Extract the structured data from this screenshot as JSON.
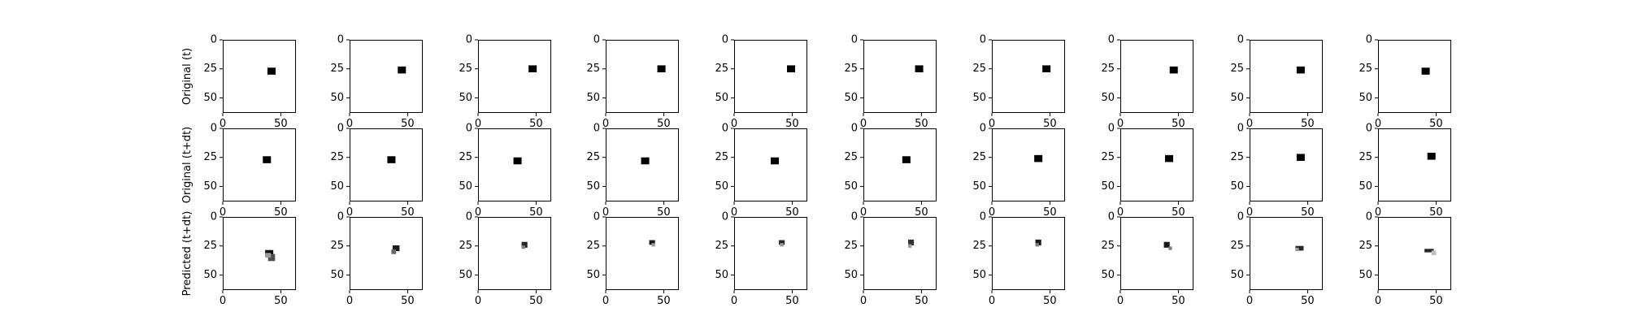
{
  "chart_data": {
    "type": "heatmap",
    "description_rows": [
      "original_t",
      "original_t_plus_dt",
      "predicted_t_plus_dt"
    ],
    "colormap": "gray_r",
    "colors": {
      "foreground": "#000000",
      "background": "#ffffff",
      "axis": "#000000"
    },
    "image_size": [
      64,
      64
    ],
    "axes": {
      "xlim": [
        0,
        63
      ],
      "ylim": [
        63,
        0
      ],
      "xticks": [
        0,
        50
      ],
      "yticks": [
        0,
        25,
        50
      ],
      "xtick_labels": [
        "0",
        "50"
      ],
      "ytick_labels": [
        "0",
        "25",
        "50"
      ]
    },
    "rows": [
      {
        "ylabel": "Original (t)",
        "frames": [
          {
            "blobs": [
              {
                "x": 42,
                "y": 27,
                "w": 7,
                "h": 6,
                "intensity": 1.0
              }
            ]
          },
          {
            "blobs": [
              {
                "x": 45,
                "y": 26,
                "w": 7,
                "h": 6,
                "intensity": 1.0
              }
            ]
          },
          {
            "blobs": [
              {
                "x": 47,
                "y": 25,
                "w": 7,
                "h": 6,
                "intensity": 1.0
              }
            ]
          },
          {
            "blobs": [
              {
                "x": 48,
                "y": 25,
                "w": 7,
                "h": 6,
                "intensity": 1.0
              }
            ]
          },
          {
            "blobs": [
              {
                "x": 49,
                "y": 25,
                "w": 7,
                "h": 6,
                "intensity": 1.0
              }
            ]
          },
          {
            "blobs": [
              {
                "x": 48,
                "y": 25,
                "w": 7,
                "h": 6,
                "intensity": 1.0
              }
            ]
          },
          {
            "blobs": [
              {
                "x": 47,
                "y": 25,
                "w": 7,
                "h": 6,
                "intensity": 1.0
              }
            ]
          },
          {
            "blobs": [
              {
                "x": 46,
                "y": 26,
                "w": 7,
                "h": 6,
                "intensity": 1.0
              }
            ]
          },
          {
            "blobs": [
              {
                "x": 44,
                "y": 26,
                "w": 7,
                "h": 6,
                "intensity": 1.0
              }
            ]
          },
          {
            "blobs": [
              {
                "x": 41,
                "y": 27,
                "w": 7,
                "h": 6,
                "intensity": 1.0
              }
            ]
          }
        ]
      },
      {
        "ylabel": "Original (t+dt)",
        "frames": [
          {
            "blobs": [
              {
                "x": 38,
                "y": 27,
                "w": 7,
                "h": 6,
                "intensity": 1.0
              }
            ]
          },
          {
            "blobs": [
              {
                "x": 36,
                "y": 27,
                "w": 7,
                "h": 6,
                "intensity": 1.0
              }
            ]
          },
          {
            "blobs": [
              {
                "x": 34,
                "y": 28,
                "w": 7,
                "h": 6,
                "intensity": 1.0
              }
            ]
          },
          {
            "blobs": [
              {
                "x": 34,
                "y": 28,
                "w": 7,
                "h": 6,
                "intensity": 1.0
              }
            ]
          },
          {
            "blobs": [
              {
                "x": 35,
                "y": 28,
                "w": 7,
                "h": 6,
                "intensity": 1.0
              }
            ]
          },
          {
            "blobs": [
              {
                "x": 37,
                "y": 27,
                "w": 7,
                "h": 6,
                "intensity": 1.0
              }
            ]
          },
          {
            "blobs": [
              {
                "x": 40,
                "y": 26,
                "w": 7,
                "h": 6,
                "intensity": 1.0
              }
            ]
          },
          {
            "blobs": [
              {
                "x": 42,
                "y": 26,
                "w": 7,
                "h": 6,
                "intensity": 1.0
              }
            ]
          },
          {
            "blobs": [
              {
                "x": 44,
                "y": 25,
                "w": 7,
                "h": 6,
                "intensity": 1.0
              }
            ]
          },
          {
            "blobs": [
              {
                "x": 46,
                "y": 24,
                "w": 7,
                "h": 6,
                "intensity": 1.0
              }
            ]
          }
        ]
      },
      {
        "ylabel": "Predicted (t+dt)",
        "frames": [
          {
            "blobs": [
              {
                "x": 40,
                "y": 31,
                "w": 7,
                "h": 5,
                "intensity": 0.95
              },
              {
                "x": 42,
                "y": 35,
                "w": 6,
                "h": 6,
                "intensity": 0.7
              },
              {
                "x": 39,
                "y": 33,
                "w": 5,
                "h": 4,
                "intensity": 0.4
              }
            ]
          },
          {
            "blobs": [
              {
                "x": 40,
                "y": 27,
                "w": 6,
                "h": 5,
                "intensity": 0.9
              },
              {
                "x": 38,
                "y": 30,
                "w": 4,
                "h": 4,
                "intensity": 0.6
              }
            ]
          },
          {
            "blobs": [
              {
                "x": 40,
                "y": 24,
                "w": 5,
                "h": 5,
                "intensity": 0.85
              },
              {
                "x": 39,
                "y": 26,
                "w": 3,
                "h": 3,
                "intensity": 0.5
              }
            ]
          },
          {
            "blobs": [
              {
                "x": 40,
                "y": 22,
                "w": 5,
                "h": 4,
                "intensity": 0.9
              },
              {
                "x": 41,
                "y": 24,
                "w": 3,
                "h": 3,
                "intensity": 0.4
              }
            ]
          },
          {
            "blobs": [
              {
                "x": 41,
                "y": 22,
                "w": 5,
                "h": 4,
                "intensity": 0.85
              },
              {
                "x": 41,
                "y": 24,
                "w": 3,
                "h": 3,
                "intensity": 0.4
              }
            ]
          },
          {
            "blobs": [
              {
                "x": 41,
                "y": 22,
                "w": 5,
                "h": 5,
                "intensity": 0.8
              },
              {
                "x": 40,
                "y": 25,
                "w": 3,
                "h": 3,
                "intensity": 0.4
              }
            ]
          },
          {
            "blobs": [
              {
                "x": 40,
                "y": 22,
                "w": 5,
                "h": 5,
                "intensity": 0.9
              },
              {
                "x": 39,
                "y": 24,
                "w": 3,
                "h": 3,
                "intensity": 0.5
              }
            ]
          },
          {
            "blobs": [
              {
                "x": 40,
                "y": 24,
                "w": 5,
                "h": 5,
                "intensity": 0.9
              },
              {
                "x": 43,
                "y": 27,
                "w": 3,
                "h": 3,
                "intensity": 0.5
              }
            ]
          },
          {
            "blobs": [
              {
                "x": 43,
                "y": 27,
                "w": 7,
                "h": 4,
                "intensity": 0.85
              },
              {
                "x": 41,
                "y": 28,
                "w": 3,
                "h": 3,
                "intensity": 0.4
              }
            ]
          },
          {
            "blobs": [
              {
                "x": 44,
                "y": 29,
                "w": 8,
                "h": 3,
                "intensity": 0.85
              },
              {
                "x": 48,
                "y": 31,
                "w": 4,
                "h": 4,
                "intensity": 0.25
              }
            ]
          }
        ]
      }
    ]
  }
}
